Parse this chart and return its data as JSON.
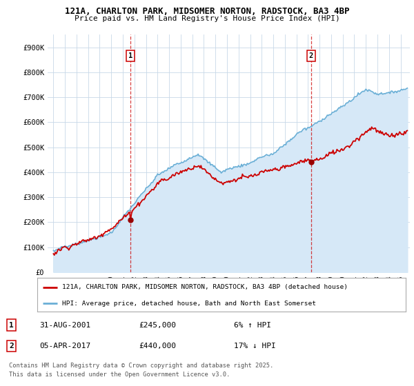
{
  "title_line1": "121A, CHARLTON PARK, MIDSOMER NORTON, RADSTOCK, BA3 4BP",
  "title_line2": "Price paid vs. HM Land Registry's House Price Index (HPI)",
  "ylim": [
    0,
    950000
  ],
  "yticks": [
    0,
    100000,
    200000,
    300000,
    400000,
    500000,
    600000,
    700000,
    800000,
    900000
  ],
  "ytick_labels": [
    "£0",
    "£100K",
    "£200K",
    "£300K",
    "£400K",
    "£500K",
    "£600K",
    "£700K",
    "£800K",
    "£900K"
  ],
  "xlim_start": 1994.5,
  "xlim_end": 2025.8,
  "hpi_fill_color": "#d6e8f7",
  "hpi_line_color": "#6aafd6",
  "price_color": "#CC0000",
  "price_dot_color": "#990000",
  "marker1_year": 2001.67,
  "marker2_year": 2017.27,
  "marker1_date": "31-AUG-2001",
  "marker1_price": "£245,000",
  "marker1_hpi": "6% ↑ HPI",
  "marker2_date": "05-APR-2017",
  "marker2_price": "£440,000",
  "marker2_hpi": "17% ↓ HPI",
  "legend_line1": "121A, CHARLTON PARK, MIDSOMER NORTON, RADSTOCK, BA3 4BP (detached house)",
  "legend_line2": "HPI: Average price, detached house, Bath and North East Somerset",
  "footnote_line1": "Contains HM Land Registry data © Crown copyright and database right 2025.",
  "footnote_line2": "This data is licensed under the Open Government Licence v3.0.",
  "bg_color": "#ffffff",
  "grid_color": "#c8d8e8"
}
